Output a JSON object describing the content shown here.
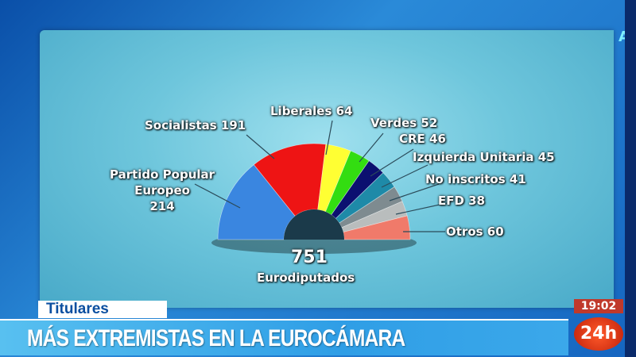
{
  "channel_mark": "A",
  "lower_third": {
    "section": "Titulares",
    "headline": "MÁS EXTREMISTAS EN LA EUROCÁMARA",
    "clock": "19:02",
    "channel_logo": "24h"
  },
  "chart_data": {
    "type": "pie",
    "subtype": "semicircle-parliament",
    "total": "751",
    "total_label": "Eurodiputados",
    "series": [
      {
        "name": "Partido Popular Europeo",
        "value": 214,
        "label": "Partido Popular\nEuropeo\n214",
        "color": "#3a86e0"
      },
      {
        "name": "Socialistas",
        "value": 191,
        "label": "Socialistas 191",
        "color": "#ee1414"
      },
      {
        "name": "Liberales",
        "value": 64,
        "label": "Liberales 64",
        "color": "#ffff33"
      },
      {
        "name": "Verdes",
        "value": 52,
        "label": "Verdes 52",
        "color": "#33dd11"
      },
      {
        "name": "CRE",
        "value": 46,
        "label": "CRE 46",
        "color": "#0b1070"
      },
      {
        "name": "Izquierda Unitaria",
        "value": 45,
        "label": "Izquierda Unitaria 45",
        "color": "#1e8aa8"
      },
      {
        "name": "No inscritos",
        "value": 41,
        "label": "No inscritos 41",
        "color": "#7e8b90"
      },
      {
        "name": "EFD",
        "value": 38,
        "label": "EFD 38",
        "color": "#b9bdbd"
      },
      {
        "name": "Otros",
        "value": 60,
        "label": "Otros 60",
        "color": "#f07a6a"
      }
    ]
  }
}
